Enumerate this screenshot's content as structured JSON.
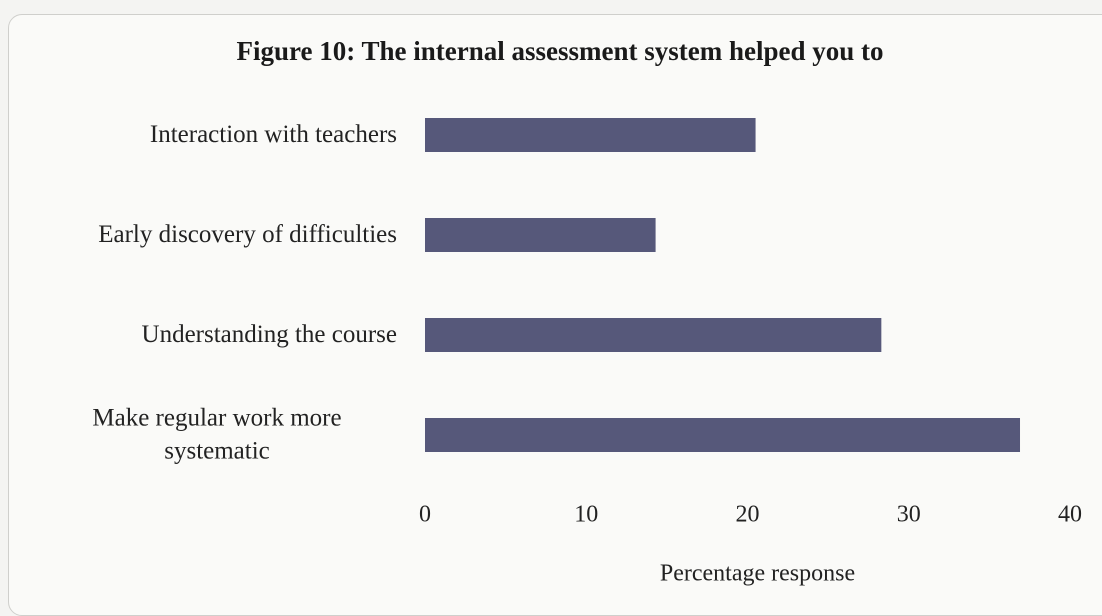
{
  "chart_data": {
    "type": "barh",
    "title": "Figure 10: The internal assessment system helped you to",
    "categories": [
      "Interaction with teachers",
      "Early discovery of difficulties",
      "Understanding the course",
      "Make regular work more systematic"
    ],
    "values": [
      20.5,
      14.3,
      28.3,
      36.9
    ],
    "color": "#56587a",
    "xlabel": "Percentage response",
    "xlim": [
      0,
      40
    ],
    "xticks": [
      0,
      10,
      20,
      30,
      40
    ],
    "grid": false
  }
}
